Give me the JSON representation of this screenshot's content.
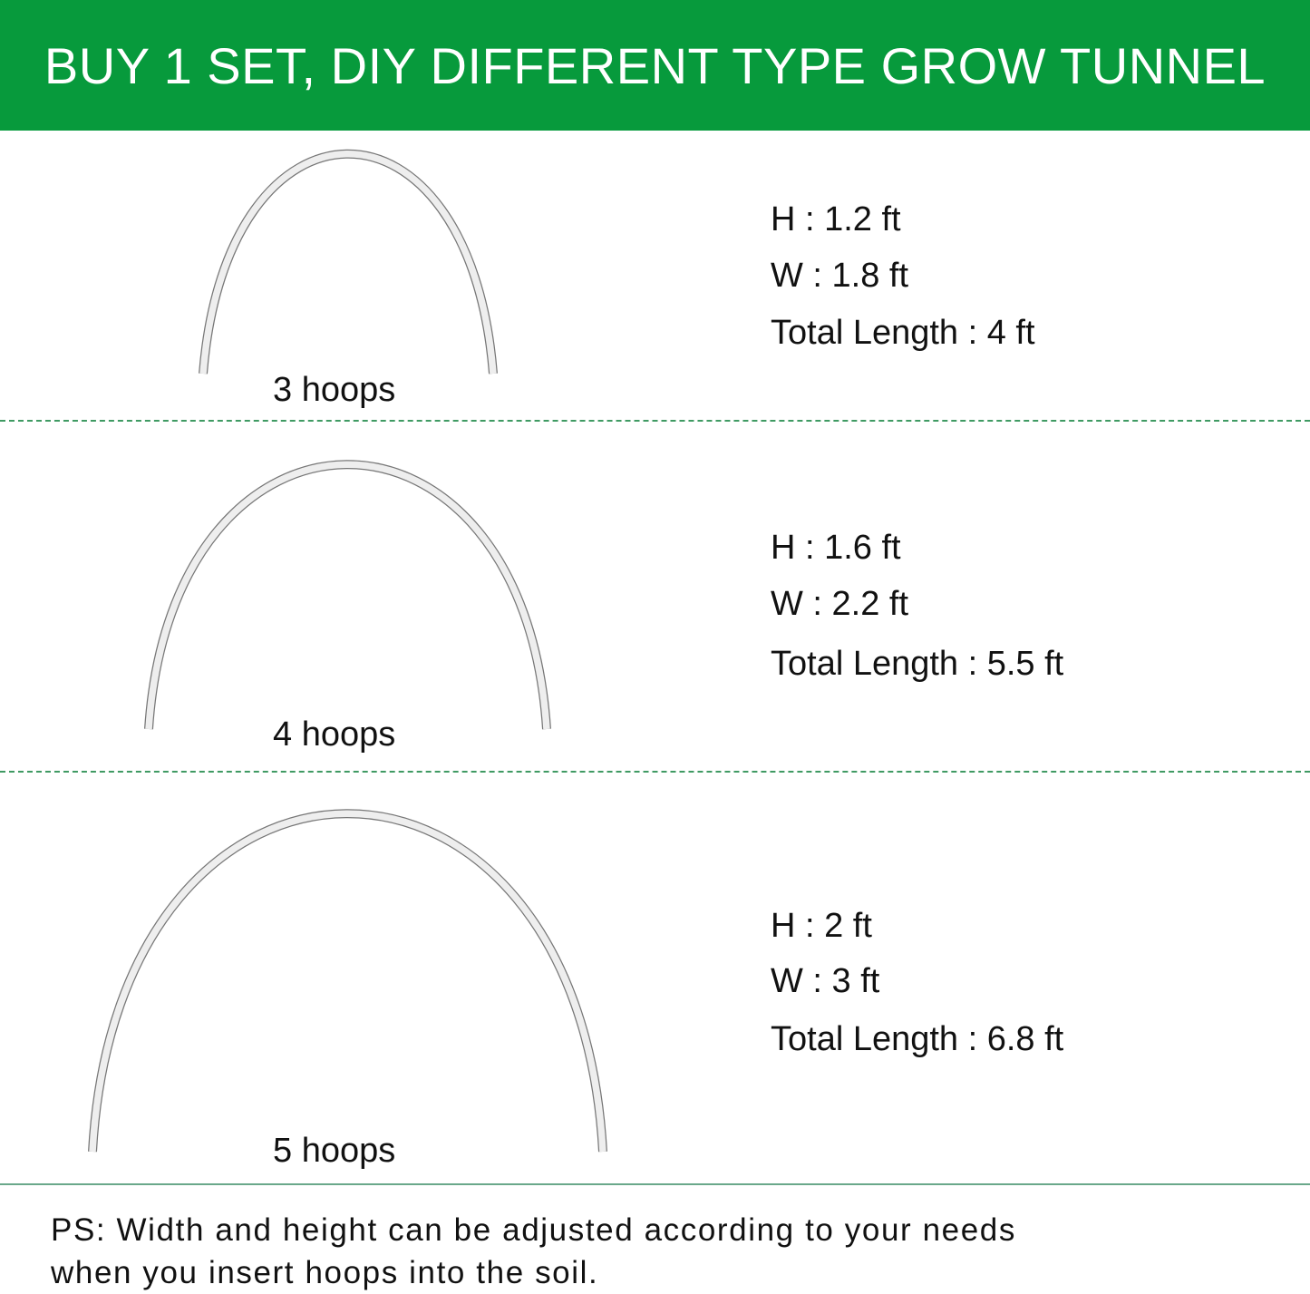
{
  "header": {
    "title": "BUY 1 SET, DIY DIFFERENT TYPE GROW TUNNEL"
  },
  "colors": {
    "header_bg": "#079a3c",
    "divider": "#3f9a63",
    "hoop_fill": "#eeeeee",
    "hoop_outline": "#777777"
  },
  "configs": [
    {
      "hoops_label": "3 hoops",
      "height": "H : 1.2 ft",
      "width": "W : 1.8 ft",
      "total_length": "Total Length : 4 ft"
    },
    {
      "hoops_label": "4 hoops",
      "height": "H : 1.6 ft",
      "width": "W : 2.2 ft",
      "total_length": "Total Length : 5.5 ft"
    },
    {
      "hoops_label": "5 hoops",
      "height": "H : 2 ft",
      "width": "W : 3 ft",
      "total_length": "Total Length : 6.8 ft"
    }
  ],
  "footer": {
    "line1": "PS: Width and height can be adjusted according to your needs",
    "line2": "when you insert hoops into the soil."
  }
}
